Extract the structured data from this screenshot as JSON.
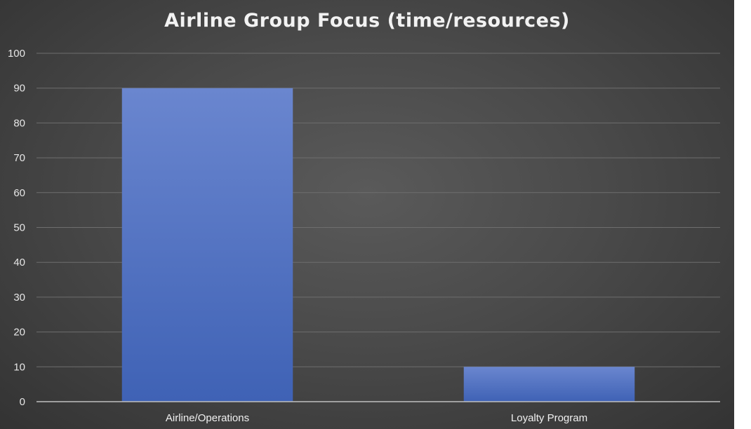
{
  "chart_data": {
    "type": "bar",
    "title": "Airline Group Focus (time/resources)",
    "categories": [
      "Airline/Operations",
      "Loyalty Program"
    ],
    "values": [
      90,
      10
    ],
    "xlabel": "",
    "ylabel": "",
    "ylim": [
      0,
      100
    ],
    "yticks": [
      "0",
      "10",
      "20",
      "30",
      "40",
      "50",
      "60",
      "70",
      "80",
      "90",
      "100"
    ],
    "grid": true,
    "legend": "none",
    "colors": {
      "bar_top": "#6a86cf",
      "bar_bottom": "#3f62b5",
      "gridline": "#6e6e6e",
      "axis": "#bfbfbf"
    }
  }
}
